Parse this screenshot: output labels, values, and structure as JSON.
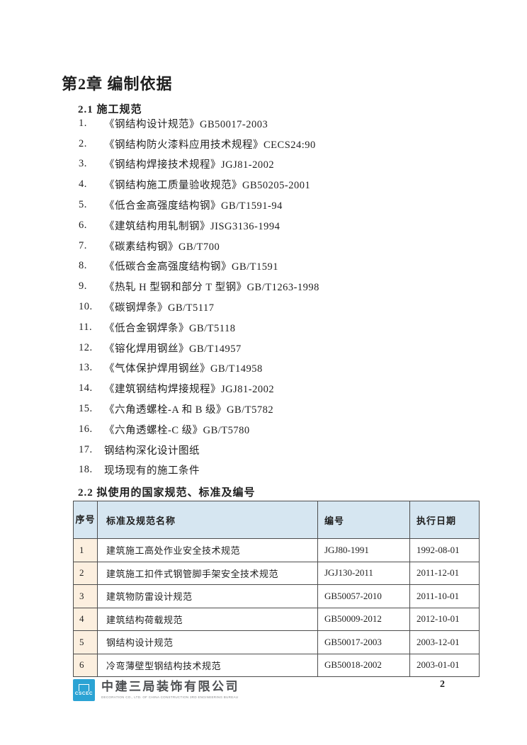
{
  "page": {
    "chapter_title": "第2章 编制依据",
    "section_2_1_title": "2.1 施工规范",
    "section_2_2_title": "2.2 拟使用的国家规范、标准及编号",
    "page_number": "2"
  },
  "spec_list": [
    {
      "num": "1.",
      "text": "《钢结构设计规范》GB50017-2003"
    },
    {
      "num": "2.",
      "text": "《钢结构防火漆料应用技术规程》CECS24:90"
    },
    {
      "num": "3.",
      "text": "《钢结构焊接技术规程》JGJ81-2002"
    },
    {
      "num": "4.",
      "text": "《钢结构施工质量验收规范》GB50205-2001"
    },
    {
      "num": "5.",
      "text": "《低合金高强度结构钢》GB/T1591-94"
    },
    {
      "num": "6.",
      "text": "《建筑结构用轧制钢》JISG3136-1994"
    },
    {
      "num": "7.",
      "text": "《碳素结构钢》GB/T700"
    },
    {
      "num": "8.",
      "text": "《低碳合金高强度结构钢》GB/T1591"
    },
    {
      "num": "9.",
      "text": "《热轧 H 型钢和部分 T 型钢》GB/T1263-1998"
    },
    {
      "num": "10.",
      "text": "《碳钢焊条》GB/T5117"
    },
    {
      "num": "11.",
      "text": "《低合金钢焊条》GB/T5118"
    },
    {
      "num": "12.",
      "text": "《镕化焊用钢丝》GB/T14957"
    },
    {
      "num": "13.",
      "text": "《气体保护焊用钢丝》GB/T14958"
    },
    {
      "num": "14.",
      "text": "《建筑钢结构焊接规程》JGJ81-2002"
    },
    {
      "num": "15.",
      "text": "《六角透螺栓-A 和 B 级》GB/T5782"
    },
    {
      "num": "16.",
      "text": "《六角透螺栓-C 级》GB/T5780"
    },
    {
      "num": "17.",
      "text": "钢结构深化设计图纸"
    },
    {
      "num": "18.",
      "text": "现场现有的施工条件"
    }
  ],
  "table": {
    "headers": [
      "序号",
      "标准及规范名称",
      "编号",
      "执行日期"
    ],
    "rows": [
      {
        "no": "1",
        "name": "建筑施工高处作业安全技术规范",
        "code": "JGJ80-1991",
        "date": "1992-08-01"
      },
      {
        "no": "2",
        "name": "建筑施工扣件式钢管脚手架安全技术规范",
        "code": "JGJ130-2011",
        "date": "2011-12-01"
      },
      {
        "no": "3",
        "name": "建筑物防雷设计规范",
        "code": "GB50057-2010",
        "date": "2011-10-01"
      },
      {
        "no": "4",
        "name": "建筑结构荷载规范",
        "code": "GB50009-2012",
        "date": "2012-10-01"
      },
      {
        "no": "5",
        "name": "钢结构设计规范",
        "code": "GB50017-2003",
        "date": "2003-12-01"
      },
      {
        "no": "6",
        "name": "冷弯薄壁型钢结构技术规范",
        "code": "GB50018-2002",
        "date": "2003-01-01"
      }
    ]
  },
  "footer": {
    "logo_text": "CSCEC",
    "company_name": "中建三局装饰有限公司",
    "company_name_en": "DECORATION CO., LTD. OF CHINA CONSTRUCTION 3RD ENGINEERING BUREAU"
  },
  "colors": {
    "table_header_bg": "#d6e6f1",
    "table_index_bg": "#fcefdf",
    "logo_blue": "#2ba3d4"
  }
}
